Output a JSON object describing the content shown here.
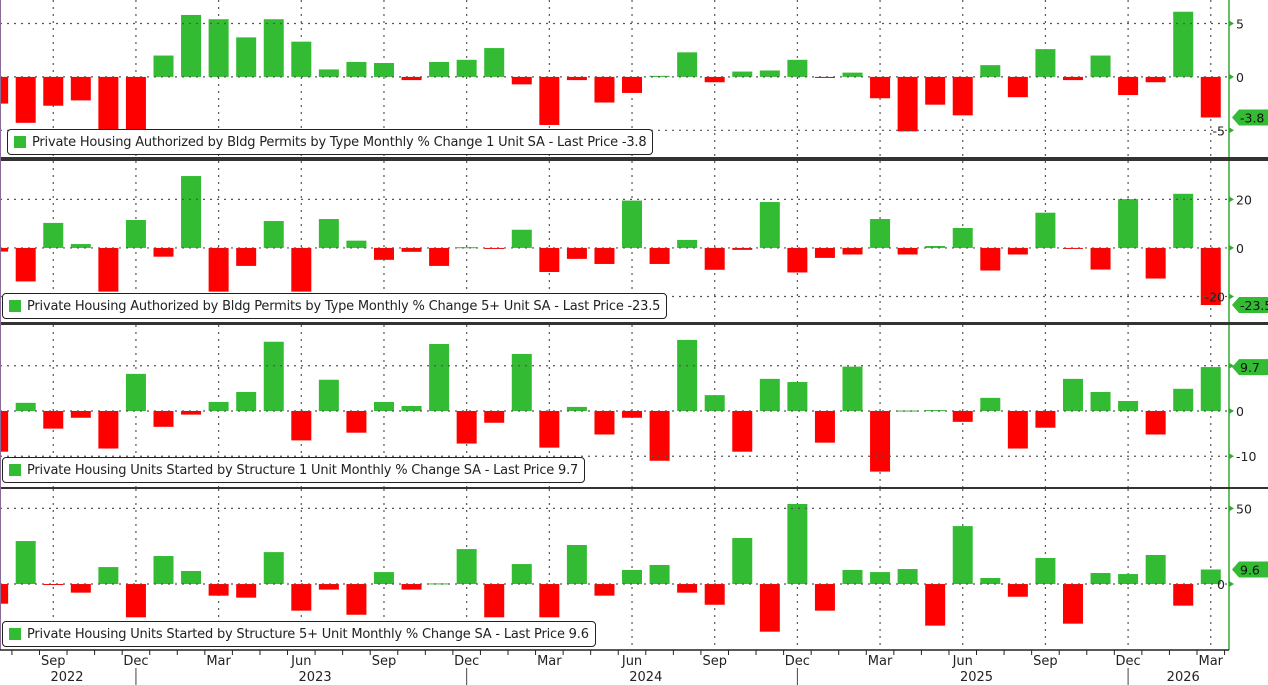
{
  "colors": {
    "up": "#33bb33",
    "down": "#ff0000",
    "axis": "#33aa33",
    "grid": "#555555",
    "separator": "#333333"
  },
  "chart_data": [
    {
      "type": "bar",
      "title": "Private Housing Authorized by Bldg Permits by Type Monthly % Change 1 Unit SA - Last Price -3.8",
      "legend": "Private Housing Authorized by Bldg Permits by Type Monthly % Change 1 Unit SA - Last Price -3.8",
      "last_price": "-3.8",
      "last_value": -3.8,
      "ylim": [
        -7.5,
        7.2
      ],
      "ticks": [
        5,
        0,
        -5
      ],
      "tick_labels": [
        "5",
        "0",
        "-5"
      ],
      "values": [
        -2.5,
        -4.3,
        -2.7,
        -2.2,
        -5.5,
        -5.5,
        2.0,
        5.8,
        5.4,
        3.7,
        5.4,
        3.3,
        0.7,
        1.4,
        1.3,
        -0.3,
        1.4,
        1.6,
        2.7,
        -0.7,
        -4.5,
        -0.3,
        -2.4,
        -1.5,
        0.1,
        2.3,
        -0.5,
        0.5,
        0.6,
        1.6,
        -0.1,
        0.4,
        -2.0,
        -5.1,
        -2.6,
        -3.6,
        1.1,
        -1.9,
        2.6,
        -0.3,
        2.0,
        -1.7,
        -0.5,
        6.1,
        -3.8
      ]
    },
    {
      "type": "bar",
      "title": "Private Housing Authorized by Bldg Permits by Type Monthly % Change 5+ Unit SA - Last Price -23.5",
      "legend": "Private Housing Authorized by Bldg Permits by Type Monthly % Change 5+ Unit SA - Last Price -23.5",
      "last_price": "-23.5",
      "last_value": -23.5,
      "ylim": [
        -30.5,
        35.8
      ],
      "ticks": [
        20,
        0,
        -20
      ],
      "tick_labels": [
        "20",
        "0",
        "-20"
      ],
      "values": [
        -1.5,
        -13.8,
        10.3,
        1.6,
        -18,
        11.5,
        -3.6,
        29.6,
        -18,
        -7.4,
        11.1,
        -18,
        11.9,
        3.0,
        -4.9,
        -1.6,
        -7.4,
        0.3,
        -0.3,
        7.5,
        -9.9,
        -4.5,
        -6.6,
        19.5,
        -6.6,
        3.3,
        -9.0,
        -0.8,
        18.9,
        -10.1,
        -4.1,
        -2.7,
        11.9,
        -2.7,
        0.8,
        8.2,
        -9.3,
        -2.7,
        14.5,
        -0.3,
        -8.9,
        20.1,
        -12.6,
        22.3,
        -23.5
      ]
    },
    {
      "type": "bar",
      "title": "Private Housing Units Started by Structure 1 Unit Monthly % Change SA - Last Price 9.7",
      "legend": "Private Housing Units Started by Structure 1 Unit Monthly % Change SA - Last Price 9.7",
      "last_price": "9.7",
      "last_value": 9.7,
      "ylim": [
        -16.8,
        19.0
      ],
      "ticks": [
        10,
        0,
        -10
      ],
      "tick_labels": [
        "",
        "0",
        "-10"
      ],
      "values": [
        -9.0,
        1.8,
        -3.9,
        -1.5,
        -8.3,
        8.2,
        -3.5,
        -0.8,
        2.0,
        4.2,
        15.3,
        -6.5,
        6.9,
        -4.8,
        2.0,
        1.1,
        14.8,
        -7.2,
        -2.6,
        12.6,
        -8.1,
        0.9,
        -5.2,
        -1.5,
        -11.0,
        15.7,
        3.5,
        -9.0,
        7.1,
        6.4,
        -7.0,
        9.8,
        -13.4,
        0.1,
        0.2,
        -2.4,
        2.9,
        -8.3,
        -3.7,
        7.1,
        4.2,
        2.2,
        -5.2,
        4.9,
        9.7
      ]
    },
    {
      "type": "bar",
      "title": "Private Housing Units Started by Structure 5+ Unit Monthly % Change SA - Last Price 9.6",
      "legend": "Private Housing Units Started by Structure 5+ Unit Monthly % Change SA - Last Price 9.6",
      "last_price": "9.6",
      "last_value": 9.6,
      "ylim": [
        -43.6,
        62.8
      ],
      "ticks": [
        50,
        0
      ],
      "tick_labels": [
        "50",
        "0"
      ],
      "values": [
        -13,
        28.4,
        -0.5,
        -5.7,
        11.2,
        -22,
        18.5,
        8.6,
        -7.7,
        -9.0,
        21.1,
        -17.6,
        -3.7,
        -20.3,
        7.9,
        -3.7,
        0.4,
        23.1,
        -22,
        13.2,
        -22,
        25.8,
        -7.7,
        9.3,
        12.6,
        -5.7,
        -13.7,
        30.4,
        -31.5,
        52.9,
        -17.6,
        9.3,
        7.9,
        9.9,
        -27.5,
        38.3,
        4.0,
        -8.4,
        17.2,
        -26.2,
        7.3,
        6.6,
        19.2,
        -14.3,
        9.6
      ]
    }
  ],
  "x_axis": {
    "start": "Jul 2022",
    "end": "Mar 2026",
    "month_labels": [
      {
        "index": 2,
        "label": "Sep"
      },
      {
        "index": 5,
        "label": "Dec"
      },
      {
        "index": 8,
        "label": "Mar"
      },
      {
        "index": 11,
        "label": "Jun"
      },
      {
        "index": 14,
        "label": "Sep"
      },
      {
        "index": 17,
        "label": "Dec"
      },
      {
        "index": 20,
        "label": "Mar"
      },
      {
        "index": 23,
        "label": "Jun"
      },
      {
        "index": 26,
        "label": "Sep"
      },
      {
        "index": 29,
        "label": "Dec"
      },
      {
        "index": 32,
        "label": "Mar"
      },
      {
        "index": 35,
        "label": "Jun"
      },
      {
        "index": 38,
        "label": "Sep"
      },
      {
        "index": 41,
        "label": "Dec"
      },
      {
        "index": 44,
        "label": "Mar"
      }
    ],
    "year_labels": [
      {
        "from": 0,
        "to": 5,
        "label": "2022"
      },
      {
        "from": 6,
        "to": 17,
        "label": "2023"
      },
      {
        "from": 18,
        "to": 29,
        "label": "2024"
      },
      {
        "from": 30,
        "to": 41,
        "label": "2025"
      },
      {
        "from": 42,
        "to": 44,
        "label": "2026"
      }
    ]
  }
}
